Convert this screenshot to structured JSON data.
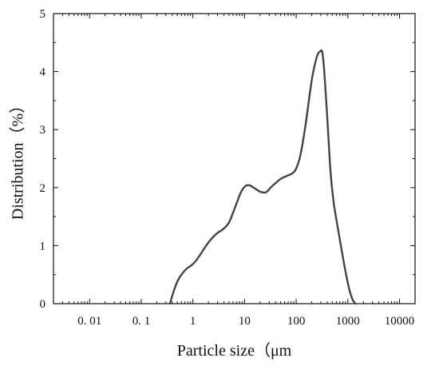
{
  "chart_data": {
    "type": "line",
    "title": "",
    "xlabel": "Particle size（μm",
    "ylabel": "Distribution（%）",
    "x_scale": "log",
    "xlim": [
      0.002,
      20000
    ],
    "ylim": [
      0,
      5
    ],
    "grid": false,
    "x_ticks": [
      {
        "value": 0.01,
        "label": "0. 01"
      },
      {
        "value": 0.1,
        "label": "0. 1"
      },
      {
        "value": 1,
        "label": "1"
      },
      {
        "value": 10,
        "label": "10"
      },
      {
        "value": 100,
        "label": "100"
      },
      {
        "value": 1000,
        "label": "1000"
      },
      {
        "value": 10000,
        "label": "10000"
      }
    ],
    "y_ticks": [
      {
        "value": 0,
        "label": "0"
      },
      {
        "value": 1,
        "label": "1"
      },
      {
        "value": 2,
        "label": "2"
      },
      {
        "value": 3,
        "label": "3"
      },
      {
        "value": 4,
        "label": "4"
      },
      {
        "value": 5,
        "label": "5"
      }
    ],
    "series": [
      {
        "color": "#444444",
        "x": [
          0.36,
          0.42,
          0.5,
          0.6,
          0.75,
          0.9,
          1.1,
          1.4,
          1.8,
          2.3,
          3.0,
          3.8,
          5.0,
          6.5,
          8.5,
          10.5,
          12.5,
          15,
          20,
          26,
          32,
          40,
          50,
          65,
          85,
          100,
          120,
          150,
          200,
          250,
          290,
          320,
          350,
          400,
          460,
          530,
          600,
          700,
          820,
          950,
          1100,
          1250,
          1400
        ],
        "y": [
          0,
          0.2,
          0.38,
          0.5,
          0.6,
          0.65,
          0.72,
          0.85,
          1.0,
          1.12,
          1.22,
          1.28,
          1.4,
          1.65,
          1.92,
          2.03,
          2.04,
          2.0,
          1.93,
          1.92,
          2.0,
          2.08,
          2.15,
          2.2,
          2.25,
          2.33,
          2.55,
          3.05,
          3.85,
          4.25,
          4.35,
          4.33,
          4.0,
          3.2,
          2.3,
          1.75,
          1.45,
          1.1,
          0.75,
          0.45,
          0.2,
          0.06,
          0.0
        ]
      }
    ]
  }
}
